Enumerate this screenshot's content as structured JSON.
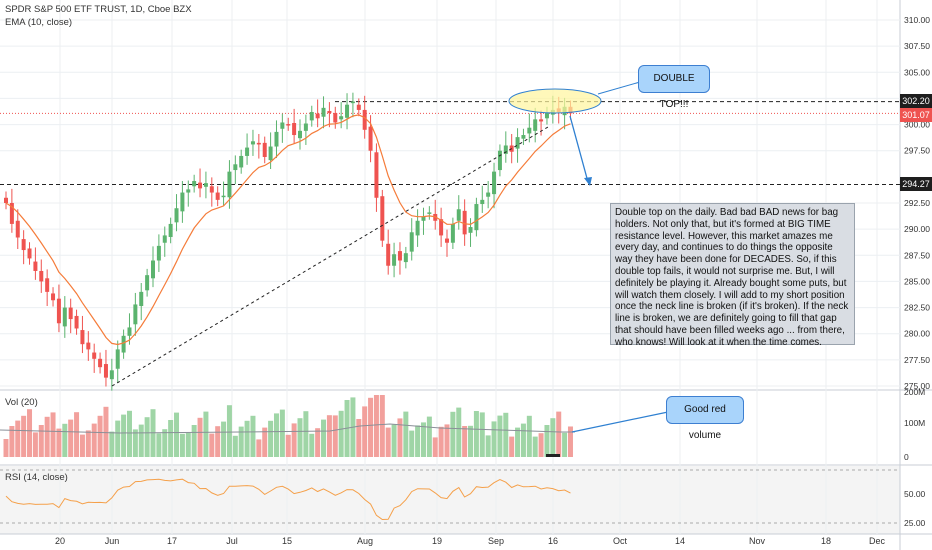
{
  "header": {
    "title": "SPDR S&P 500 ETF TRUST, 1D, Cboe BZX",
    "indicator": "EMA (10, close)"
  },
  "price_tags": {
    "resistance": "302.20",
    "current": "301.07",
    "neckline": "294.27"
  },
  "volume_pane": {
    "label": "Vol (20)"
  },
  "rsi_pane": {
    "label": "RSI (14, close)"
  },
  "annotations": {
    "double_top": "DOUBLE TOP!!!",
    "good_red_volume": "Good red volume",
    "note": "Double top on the daily. Bad bad BAD news for bag holders. Not only that, but it's formed at BIG TIME resistance level. However, this market amazes me every day, and continues to do things the opposite way they have been done for DECADES. So, if this double top fails, it would not surprise me. But, I will definitely be playing it. Already bought some puts, but will watch them closely. I will add to my short position once the neck line is broken (if it's broken). If the neck line is broken, we are definitely going to fill that gap that should have been filled weeks ago ... from there, who knows! Will look at it when the time comes."
  },
  "colors": {
    "up": "#5bb36e",
    "down": "#ef5350",
    "ema": "#f57c3a",
    "rsi": "#f5a04a",
    "grid": "#eceff2",
    "callout": "#a9d4fb",
    "note_bg": "#d9dde3"
  },
  "chart_data": [
    {
      "type": "candlestick",
      "title": "SPDR S&P 500 ETF TRUST, 1D, Cboe BZX",
      "y_ticks": [
        "310.00",
        "307.50",
        "305.00",
        "302.50",
        "300.00",
        "297.50",
        "292.50",
        "290.00",
        "287.50",
        "285.00",
        "282.50",
        "280.00",
        "277.50",
        "275.00"
      ],
      "x_ticks": [
        "20",
        "Jun",
        "17",
        "Jul",
        "15",
        "Aug",
        "19",
        "Sep",
        "16",
        "Oct",
        "14",
        "Nov",
        "18",
        "Dec"
      ],
      "ylim": [
        274.5,
        311.5
      ],
      "series": [
        {
          "name": "EMA (10, close)",
          "type": "line"
        }
      ],
      "horizontal_levels": [
        302.2,
        301.07,
        294.27
      ]
    },
    {
      "type": "bar",
      "title": "Vol (20)",
      "y_ticks": [
        "200M",
        "100M",
        "0"
      ]
    },
    {
      "type": "line",
      "title": "RSI (14, close)",
      "y_ticks": [
        "50.00",
        "25.00"
      ]
    }
  ]
}
